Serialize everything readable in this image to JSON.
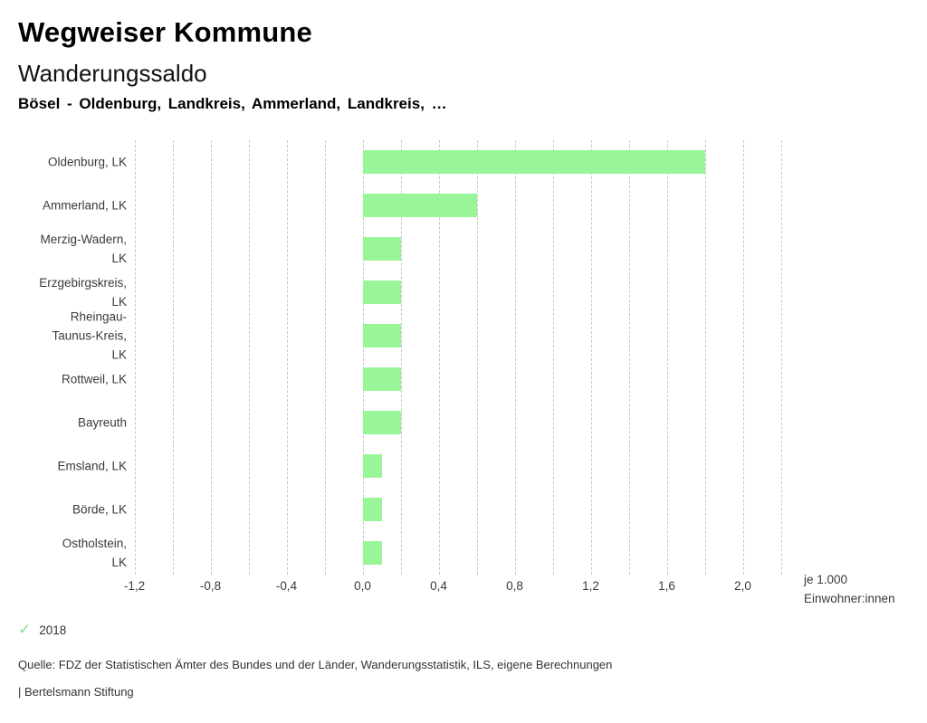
{
  "header": {
    "title": "Wegweiser Kommune",
    "subtitle": "Wanderungssaldo",
    "selection": "Bösel - Oldenburg, Landkreis, Ammerland, Landkreis, …"
  },
  "chart_data": {
    "type": "bar",
    "orientation": "horizontal",
    "title": "Wanderungssaldo",
    "categories": [
      "Oldenburg, LK",
      "Ammerland, LK",
      "Merzig-Wadern, LK",
      "Erzgebirgskreis, LK",
      "Rheingau-Taunus-Kreis, LK",
      "Rottweil, LK",
      "Bayreuth",
      "Emsland, LK",
      "Börde, LK",
      "Ostholstein, LK"
    ],
    "category_label_lines": [
      [
        "Oldenburg, LK"
      ],
      [
        "Ammerland, LK"
      ],
      [
        "Merzig-Wadern,",
        "LK"
      ],
      [
        "Erzgebirgskreis,",
        "LK"
      ],
      [
        "Rheingau-",
        "Taunus-Kreis,",
        "LK"
      ],
      [
        "Rottweil, LK"
      ],
      [
        "Bayreuth"
      ],
      [
        "Emsland, LK"
      ],
      [
        "Börde, LK"
      ],
      [
        "Ostholstein,",
        "LK"
      ]
    ],
    "series": [
      {
        "name": "2018",
        "values": [
          1.8,
          0.6,
          0.2,
          0.2,
          0.2,
          0.2,
          0.2,
          0.1,
          0.1,
          0.1
        ],
        "color": "#98f698"
      }
    ],
    "xlim": [
      -1.25,
      2.25
    ],
    "gridline_step": 0.2,
    "grid": true,
    "x_ticks": [
      {
        "value": -1.2,
        "label": "-1,2"
      },
      {
        "value": -0.8,
        "label": "-0,8"
      },
      {
        "value": -0.4,
        "label": "-0,4"
      },
      {
        "value": 0.0,
        "label": "0,0"
      },
      {
        "value": 0.4,
        "label": "0,4"
      },
      {
        "value": 0.8,
        "label": "0,8"
      },
      {
        "value": 1.2,
        "label": "1,2"
      },
      {
        "value": 1.6,
        "label": "1,6"
      },
      {
        "value": 2.0,
        "label": "2,0"
      }
    ],
    "unit_label_line1": "je 1.000",
    "unit_label_line2": "Einwohner:innen",
    "gridline_color": "#c6c6c6"
  },
  "legend": {
    "check_icon": "✓",
    "check_color": "#86dd86",
    "items": [
      {
        "label": "2018"
      }
    ]
  },
  "footer": {
    "source": "Quelle: FDZ der Statistischen Ämter des Bundes und der Länder, Wanderungsstatistik, ILS, eigene Berechnungen",
    "branding": "| Bertelsmann Stiftung"
  }
}
